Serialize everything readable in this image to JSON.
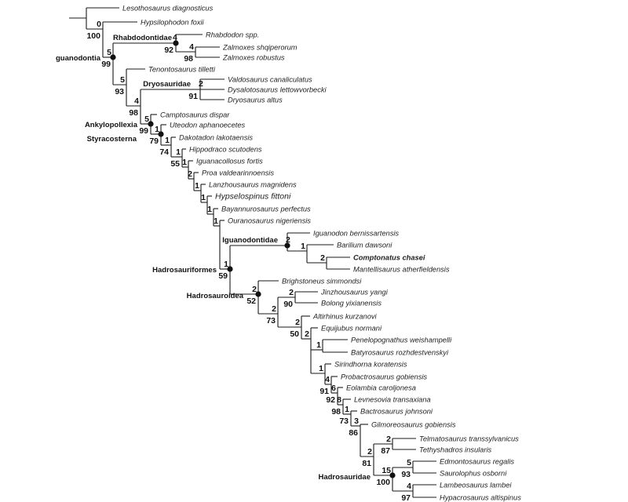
{
  "taxa": [
    {
      "name": "Lesothosaurus diagnosticus"
    },
    {
      "name": "Hypsilophodon foxii"
    },
    {
      "name": "Rhabdodon spp."
    },
    {
      "name": "Zalmoxes shqiperorum"
    },
    {
      "name": "Zalmoxes robustus"
    },
    {
      "name": "Tenontosaurus tilletti"
    },
    {
      "name": "Valdosaurus canaliculatus"
    },
    {
      "name": "Dysalotosaurus lettowvorbecki"
    },
    {
      "name": "Dryosaurus altus"
    },
    {
      "name": "Camptosaurus dispar"
    },
    {
      "name": "Uteodon aphanoecetes"
    },
    {
      "name": "Dakotadon lakotaensis"
    },
    {
      "name": "Hippodraco scutodens"
    },
    {
      "name": "Iguanacollosus fortis"
    },
    {
      "name": "Proa valdearinnoensis"
    },
    {
      "name": "Lanzhousaurus magnidens"
    },
    {
      "name": "Hypselospinus fittoni"
    },
    {
      "name": "Bayannurosaurus perfectus"
    },
    {
      "name": "Ouranosaurus nigeriensis"
    },
    {
      "name": "Iguanodon bernissartensis"
    },
    {
      "name": "Barilium dawsoni"
    },
    {
      "name": "Comptonatus chasei",
      "highlight": true
    },
    {
      "name": "Mantellisaurus atherfieldensis"
    },
    {
      "name": "Brighstoneus simmondsi"
    },
    {
      "name": "Jinzhousaurus yangi"
    },
    {
      "name": "Bolong yixianensis"
    },
    {
      "name": "Altirhinus kurzanovi"
    },
    {
      "name": "Equijubus normani"
    },
    {
      "name": "Penelopognathus weishampelli"
    },
    {
      "name": "Batyrosaurus rozhdestvenskyi"
    },
    {
      "name": "Sirindhorna koratensis"
    },
    {
      "name": "Probactrosaurus gobiensis"
    },
    {
      "name": "Eolambia caroljonesa"
    },
    {
      "name": "Levnesovia transaxiana"
    },
    {
      "name": "Bactrosaurus johnsoni"
    },
    {
      "name": "Gilmoreosaurus gobiensis"
    },
    {
      "name": "Telmatosaurus transsylvanicus"
    },
    {
      "name": "Tethyshadros insularis"
    },
    {
      "name": "Edmontosaurus regalis"
    },
    {
      "name": "Saurolophus osborni"
    },
    {
      "name": "Lambeosaurus lambei"
    },
    {
      "name": "Hypacrosaurus altispinus"
    }
  ],
  "nodes": [
    {
      "bremer": "",
      "bootstrap": ""
    },
    {
      "bremer": "0",
      "bootstrap": "100"
    },
    {
      "clade": "guanodontia",
      "bremer": "5",
      "bootstrap": "99",
      "named_node": true
    },
    {
      "clade": "Rhabdodontidae",
      "bremer": "4",
      "bootstrap": "92",
      "named_node": true
    },
    {
      "bremer": "4",
      "bootstrap": "98"
    },
    {
      "bremer": "5",
      "bootstrap": "93"
    },
    {
      "bremer": "4",
      "bootstrap": "98"
    },
    {
      "clade": "Dryosauridae",
      "bremer": "2",
      "bootstrap": "91"
    },
    {
      "clade": "Ankylopollexia",
      "bremer": "5",
      "bootstrap": "99",
      "named_node": true
    },
    {
      "clade": "Styracosterna",
      "bremer": "1",
      "bootstrap": "79",
      "named_node": true
    },
    {
      "bremer": "1",
      "bootstrap": "74"
    },
    {
      "bremer": "1",
      "bootstrap": "55"
    },
    {
      "bremer": "1",
      "bootstrap": ""
    },
    {
      "bremer": "2",
      "bootstrap": ""
    },
    {
      "bremer": "1",
      "bootstrap": ""
    },
    {
      "bremer": "1",
      "bootstrap": ""
    },
    {
      "bremer": "1",
      "bootstrap": ""
    },
    {
      "bremer": "1",
      "bootstrap": ""
    },
    {
      "clade": "Hadrosauriformes",
      "bremer": "1",
      "bootstrap": "59",
      "named_node": true
    },
    {
      "clade": "Iguanodontidae",
      "bremer": "2",
      "bootstrap": "",
      "named_node": true
    },
    {
      "bremer": "1",
      "bootstrap": ""
    },
    {
      "bremer": "2",
      "bootstrap": ""
    },
    {
      "clade": "Hadrosauroidea",
      "bremer": "2",
      "bootstrap": "52",
      "named_node": true
    },
    {
      "bremer": "2",
      "bootstrap": "73"
    },
    {
      "bremer": "2",
      "bootstrap": "90"
    },
    {
      "bremer": "2",
      "bootstrap": "50"
    },
    {
      "bremer": "2",
      "bootstrap": ""
    },
    {
      "bremer": "1",
      "bootstrap": ""
    },
    {
      "bremer": "1",
      "bootstrap": ""
    },
    {
      "bremer": "4",
      "bootstrap": "91"
    },
    {
      "bremer": "6",
      "bootstrap": "92"
    },
    {
      "bremer": "8",
      "bootstrap": "98"
    },
    {
      "bremer": "1",
      "bootstrap": "73"
    },
    {
      "bremer": "3",
      "bootstrap": "86"
    },
    {
      "bremer": "2",
      "bootstrap": "81"
    },
    {
      "bremer": "2",
      "bootstrap": "87"
    },
    {
      "clade": "Hadrosauridae",
      "bremer": "15",
      "bootstrap": "100",
      "named_node": true
    },
    {
      "bremer": "5",
      "bootstrap": "93"
    },
    {
      "bremer": "4",
      "bootstrap": "97"
    }
  ],
  "colors": {
    "branch": "#1a1a1a",
    "text": "#222222",
    "background": "#ffffff"
  }
}
